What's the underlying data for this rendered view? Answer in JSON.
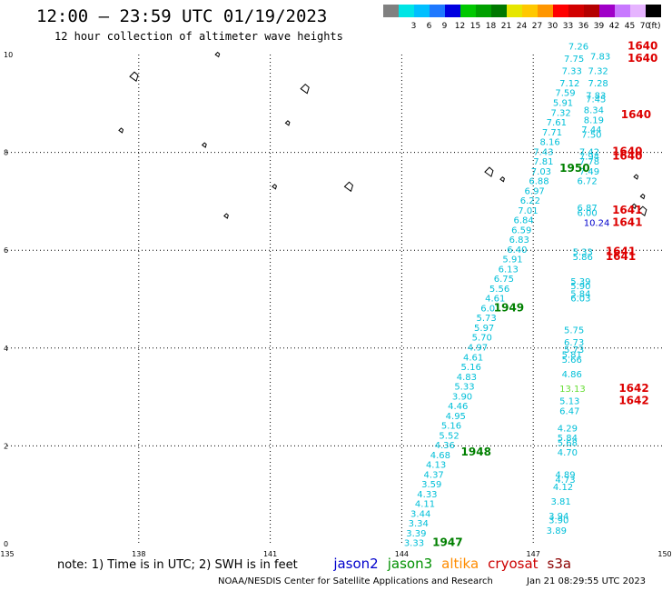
{
  "header": {
    "title": "12:00 — 23:59 UTC 01/19/2023",
    "subtitle": "12 hour collection of altimeter wave heights"
  },
  "legend": {
    "unit": "(ft)",
    "swatches": [
      {
        "color": "#808080",
        "label": ""
      },
      {
        "color": "#00e5e5",
        "label": "3"
      },
      {
        "color": "#00bfff",
        "label": "6"
      },
      {
        "color": "#1e78ff",
        "label": "9"
      },
      {
        "color": "#0000e0",
        "label": "12"
      },
      {
        "color": "#00c800",
        "label": "15"
      },
      {
        "color": "#00a000",
        "label": "18"
      },
      {
        "color": "#007800",
        "label": "21"
      },
      {
        "color": "#e6e600",
        "label": "24"
      },
      {
        "color": "#ffc800",
        "label": "27"
      },
      {
        "color": "#ff9600",
        "label": "30"
      },
      {
        "color": "#ff0000",
        "label": "33"
      },
      {
        "color": "#d20000",
        "label": "36"
      },
      {
        "color": "#b40000",
        "label": "39"
      },
      {
        "color": "#a000c8",
        "label": "42"
      },
      {
        "color": "#c878ff",
        "label": "45"
      },
      {
        "color": "#e6b4ff",
        "label": "70"
      },
      {
        "color": "#000000",
        "label": ""
      }
    ]
  },
  "map": {
    "lon_labels": [
      "135",
      "138",
      "141",
      "144",
      "147",
      "150"
    ],
    "lat_labels": [
      "0",
      "2",
      "4",
      "6",
      "8",
      "10"
    ],
    "lon_range": [
      135,
      150
    ],
    "lat_range": [
      0,
      10
    ],
    "grid": "dotted",
    "colors": {
      "track": "#00bfd8",
      "green": "#008000",
      "red": "#dd0000",
      "blue": "#0000cc",
      "lightgreen": "#66dd33"
    },
    "main_track": [
      {
        "v": "7.26",
        "lon": 147.8,
        "lat": 10.1
      },
      {
        "v": "7.83",
        "lon": 148.3,
        "lat": 9.9
      },
      {
        "v": "7.75",
        "lon": 147.7,
        "lat": 9.85
      },
      {
        "v": "7.33",
        "lon": 147.65,
        "lat": 9.6
      },
      {
        "v": "7.32",
        "lon": 148.25,
        "lat": 9.6
      },
      {
        "v": "7.12",
        "lon": 147.6,
        "lat": 9.35
      },
      {
        "v": "7.28",
        "lon": 148.25,
        "lat": 9.35
      },
      {
        "v": "7.59",
        "lon": 147.5,
        "lat": 9.15
      },
      {
        "v": "7.83",
        "lon": 148.2,
        "lat": 9.1
      },
      {
        "v": "7.45",
        "lon": 148.2,
        "lat": 9.02
      },
      {
        "v": "5.91",
        "lon": 147.45,
        "lat": 8.95
      },
      {
        "v": "8.34",
        "lon": 148.15,
        "lat": 8.8
      },
      {
        "v": "7.32",
        "lon": 147.4,
        "lat": 8.75
      },
      {
        "v": "8.19",
        "lon": 148.15,
        "lat": 8.6
      },
      {
        "v": "7.61",
        "lon": 147.3,
        "lat": 8.55
      },
      {
        "v": "7.71",
        "lon": 147.2,
        "lat": 8.35
      },
      {
        "v": "7.44",
        "lon": 148.1,
        "lat": 8.4
      },
      {
        "v": "7.50",
        "lon": 148.1,
        "lat": 8.3
      },
      {
        "v": "8.16",
        "lon": 147.15,
        "lat": 8.15
      },
      {
        "v": "7.43",
        "lon": 147.0,
        "lat": 7.95
      },
      {
        "v": "7.42",
        "lon": 148.05,
        "lat": 7.95
      },
      {
        "v": "7.94",
        "lon": 148.05,
        "lat": 7.85
      },
      {
        "v": "7.81",
        "lon": 147.0,
        "lat": 7.75
      },
      {
        "v": "7.78",
        "lon": 148.05,
        "lat": 7.75
      },
      {
        "v": "7.03",
        "lon": 146.95,
        "lat": 7.55
      },
      {
        "v": "7.49",
        "lon": 148.05,
        "lat": 7.55
      },
      {
        "v": "6.88",
        "lon": 146.9,
        "lat": 7.35
      },
      {
        "v": "6.72",
        "lon": 148.0,
        "lat": 7.35
      },
      {
        "v": "6.97",
        "lon": 146.8,
        "lat": 7.15
      },
      {
        "v": "6.22",
        "lon": 146.7,
        "lat": 6.95
      },
      {
        "v": "7.01",
        "lon": 146.65,
        "lat": 6.75
      },
      {
        "v": "6.87",
        "lon": 148.0,
        "lat": 6.8
      },
      {
        "v": "6.00",
        "lon": 148.0,
        "lat": 6.7
      },
      {
        "v": "6.84",
        "lon": 146.55,
        "lat": 6.55
      },
      {
        "v": "6.59",
        "lon": 146.5,
        "lat": 6.35
      },
      {
        "v": "6.83",
        "lon": 146.45,
        "lat": 6.15
      },
      {
        "v": "6.40",
        "lon": 146.4,
        "lat": 5.95
      },
      {
        "v": "5.33",
        "lon": 147.9,
        "lat": 5.9
      },
      {
        "v": "5.86",
        "lon": 147.9,
        "lat": 5.8
      },
      {
        "v": "5.91",
        "lon": 146.3,
        "lat": 5.75
      },
      {
        "v": "6.13",
        "lon": 146.2,
        "lat": 5.55
      },
      {
        "v": "5.39",
        "lon": 147.85,
        "lat": 5.3
      },
      {
        "v": "6.75",
        "lon": 146.1,
        "lat": 5.35
      },
      {
        "v": "5.90",
        "lon": 147.85,
        "lat": 5.2
      },
      {
        "v": "5.56",
        "lon": 146.0,
        "lat": 5.15
      },
      {
        "v": "5.84",
        "lon": 147.85,
        "lat": 5.05
      },
      {
        "v": "6.03",
        "lon": 147.85,
        "lat": 4.95
      },
      {
        "v": "4.61",
        "lon": 145.9,
        "lat": 4.95
      },
      {
        "v": "6.01",
        "lon": 145.8,
        "lat": 4.75
      },
      {
        "v": "5.73",
        "lon": 145.7,
        "lat": 4.55
      },
      {
        "v": "5.75",
        "lon": 147.7,
        "lat": 4.3
      },
      {
        "v": "5.97",
        "lon": 145.65,
        "lat": 4.35
      },
      {
        "v": "5.70",
        "lon": 145.6,
        "lat": 4.15
      },
      {
        "v": "6.73",
        "lon": 147.7,
        "lat": 4.05
      },
      {
        "v": "4.97",
        "lon": 145.5,
        "lat": 3.95
      },
      {
        "v": "5.73",
        "lon": 147.7,
        "lat": 3.9
      },
      {
        "v": "5.81",
        "lon": 147.65,
        "lat": 3.8
      },
      {
        "v": "5.66",
        "lon": 147.65,
        "lat": 3.7
      },
      {
        "v": "4.61",
        "lon": 145.4,
        "lat": 3.75
      },
      {
        "v": "5.16",
        "lon": 145.35,
        "lat": 3.55
      },
      {
        "v": "4.86",
        "lon": 147.65,
        "lat": 3.4
      },
      {
        "v": "4.83",
        "lon": 145.25,
        "lat": 3.35
      },
      {
        "v": "5.33",
        "lon": 145.2,
        "lat": 3.15
      },
      {
        "v": "3.90",
        "lon": 145.15,
        "lat": 2.95
      },
      {
        "v": "5.13",
        "lon": 147.6,
        "lat": 2.85
      },
      {
        "v": "6.47",
        "lon": 147.6,
        "lat": 2.65
      },
      {
        "v": "4.46",
        "lon": 145.05,
        "lat": 2.75
      },
      {
        "v": "4.95",
        "lon": 145.0,
        "lat": 2.55
      },
      {
        "v": "5.16",
        "lon": 144.9,
        "lat": 2.35
      },
      {
        "v": "4.29",
        "lon": 147.55,
        "lat": 2.3
      },
      {
        "v": "5.52",
        "lon": 144.85,
        "lat": 2.15
      },
      {
        "v": "5.84",
        "lon": 147.55,
        "lat": 2.1
      },
      {
        "v": "5.68",
        "lon": 147.55,
        "lat": 2.0
      },
      {
        "v": "4.36",
        "lon": 144.75,
        "lat": 1.95
      },
      {
        "v": "4.70",
        "lon": 147.55,
        "lat": 1.8
      },
      {
        "v": "4.68",
        "lon": 144.65,
        "lat": 1.75
      },
      {
        "v": "4.13",
        "lon": 144.55,
        "lat": 1.55
      },
      {
        "v": "4.37",
        "lon": 144.5,
        "lat": 1.35
      },
      {
        "v": "4.89",
        "lon": 147.5,
        "lat": 1.35
      },
      {
        "v": "4.73",
        "lon": 147.5,
        "lat": 1.25
      },
      {
        "v": "3.59",
        "lon": 144.45,
        "lat": 1.15
      },
      {
        "v": "4.12",
        "lon": 147.45,
        "lat": 1.1
      },
      {
        "v": "4.33",
        "lon": 144.35,
        "lat": 0.95
      },
      {
        "v": "3.81",
        "lon": 147.4,
        "lat": 0.8
      },
      {
        "v": "4.11",
        "lon": 144.3,
        "lat": 0.75
      },
      {
        "v": "3.44",
        "lon": 144.2,
        "lat": 0.55
      },
      {
        "v": "3.94",
        "lon": 147.35,
        "lat": 0.5
      },
      {
        "v": "3.90",
        "lon": 147.35,
        "lat": 0.42
      },
      {
        "v": "3.34",
        "lon": 144.15,
        "lat": 0.35
      },
      {
        "v": "3.39",
        "lon": 144.1,
        "lat": 0.15
      },
      {
        "v": "3.89",
        "lon": 147.3,
        "lat": 0.2
      },
      {
        "v": "3.33",
        "lon": 144.05,
        "lat": -0.05
      }
    ],
    "other_values": [
      {
        "v": "10.24",
        "lon": 148.15,
        "lat": 6.5,
        "kind": "blue"
      },
      {
        "v": "13.13",
        "lon": 147.6,
        "lat": 3.1,
        "kind": "lightgreen"
      }
    ],
    "time_labels": [
      {
        "v": "1640",
        "lon": 149.15,
        "lat": 10.1,
        "kind": "red"
      },
      {
        "v": "1640",
        "lon": 149.15,
        "lat": 9.85,
        "kind": "red"
      },
      {
        "v": "1640",
        "lon": 149.0,
        "lat": 8.7,
        "kind": "red"
      },
      {
        "v": "1640",
        "lon": 148.8,
        "lat": 7.95,
        "kind": "red"
      },
      {
        "v": "1640",
        "lon": 148.8,
        "lat": 7.85,
        "kind": "red"
      },
      {
        "v": "1641",
        "lon": 148.8,
        "lat": 6.75,
        "kind": "red"
      },
      {
        "v": "1641",
        "lon": 148.8,
        "lat": 6.5,
        "kind": "red"
      },
      {
        "v": "1641",
        "lon": 148.65,
        "lat": 5.9,
        "kind": "red"
      },
      {
        "v": "1641",
        "lon": 148.65,
        "lat": 5.8,
        "kind": "red"
      },
      {
        "v": "1642",
        "lon": 148.95,
        "lat": 3.1,
        "kind": "red"
      },
      {
        "v": "1642",
        "lon": 148.95,
        "lat": 2.85,
        "kind": "red"
      },
      {
        "v": "1950",
        "lon": 147.6,
        "lat": 7.6,
        "kind": "green"
      },
      {
        "v": "1949",
        "lon": 146.1,
        "lat": 4.75,
        "kind": "green"
      },
      {
        "v": "1948",
        "lon": 145.35,
        "lat": 1.8,
        "kind": "green"
      },
      {
        "v": "1947",
        "lon": 144.7,
        "lat": -0.05,
        "kind": "green"
      }
    ],
    "islands": [
      {
        "lon": 137.9,
        "lat": 9.55
      },
      {
        "lon": 137.6,
        "lat": 8.45
      },
      {
        "lon": 139.5,
        "lat": 8.15
      },
      {
        "lon": 141.8,
        "lat": 9.3
      },
      {
        "lon": 141.4,
        "lat": 8.6
      },
      {
        "lon": 140.0,
        "lat": 6.7
      },
      {
        "lon": 142.8,
        "lat": 7.3
      },
      {
        "lon": 141.1,
        "lat": 7.3
      },
      {
        "lon": 146.3,
        "lat": 7.45
      },
      {
        "lon": 146.0,
        "lat": 7.6
      },
      {
        "lon": 149.5,
        "lat": 7.1
      },
      {
        "lon": 149.3,
        "lat": 6.9
      },
      {
        "lon": 149.5,
        "lat": 6.8
      },
      {
        "lon": 149.35,
        "lat": 7.5
      },
      {
        "lon": 139.8,
        "lat": 10.0
      }
    ]
  },
  "note": {
    "text": "note: 1) Time is in UTC; 2) SWH is in feet",
    "satellites": [
      {
        "name": "jason2",
        "color": "#0000cc"
      },
      {
        "name": "jason3",
        "color": "#009000"
      },
      {
        "name": "altika",
        "color": "#ff8c00"
      },
      {
        "name": "cryosat",
        "color": "#cc0000"
      },
      {
        "name": "s3a",
        "color": "#8b0000"
      }
    ]
  },
  "footer": {
    "credit": "NOAA/NESDIS Center for Satellite Applications and Research",
    "timestamp": "Jan 21 08:29:55 UTC 2023"
  }
}
